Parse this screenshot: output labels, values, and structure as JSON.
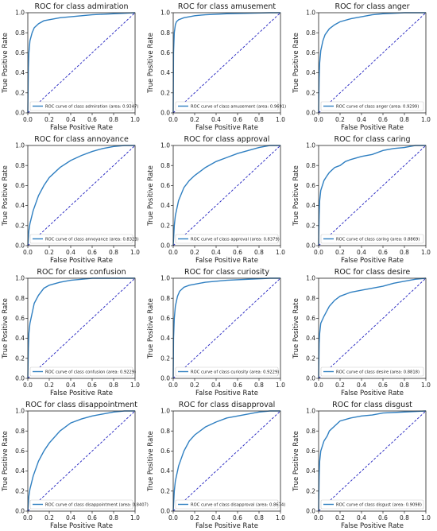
{
  "chart_data": [
    {
      "type": "line",
      "title": "ROC for class admiration",
      "xlabel": "False Positive Rate",
      "ylabel": "True Positive Rate",
      "xlim": [
        0,
        1
      ],
      "ylim": [
        0,
        1
      ],
      "xticks": [
        "0.0",
        "0.2",
        "0.4",
        "0.6",
        "0.8",
        "1.0"
      ],
      "yticks": [
        "0.0",
        "0.2",
        "0.4",
        "0.6",
        "0.8",
        "1.0"
      ],
      "legend": "lower right",
      "series": [
        {
          "name": "ROC curve of class admiration (area: 0.9347)",
          "color": "#2f7fc1",
          "x": [
            0,
            0.005,
            0.01,
            0.02,
            0.04,
            0.06,
            0.1,
            0.15,
            0.2,
            0.3,
            0.4,
            0.5,
            0.6,
            0.7,
            0.8,
            0.9,
            1.0
          ],
          "y": [
            0,
            0.45,
            0.6,
            0.72,
            0.8,
            0.85,
            0.89,
            0.92,
            0.93,
            0.95,
            0.96,
            0.97,
            0.98,
            0.985,
            0.99,
            0.995,
            1.0
          ]
        },
        {
          "name": "",
          "color": "#1f1fbf",
          "dashed": true,
          "x": [
            0,
            1
          ],
          "y": [
            0,
            1
          ]
        }
      ]
    },
    {
      "type": "line",
      "title": "ROC for class amusement",
      "xlabel": "False Positive Rate",
      "ylabel": "True Positive Rate",
      "xlim": [
        0,
        1
      ],
      "ylim": [
        0,
        1
      ],
      "xticks": [
        "0.0",
        "0.2",
        "0.4",
        "0.6",
        "0.8",
        "1.0"
      ],
      "yticks": [
        "0.0",
        "0.2",
        "0.4",
        "0.6",
        "0.8",
        "1.0"
      ],
      "legend": "lower right",
      "series": [
        {
          "name": "ROC curve of class amusement (area: 0.9691)",
          "color": "#2f7fc1",
          "x": [
            0,
            0.003,
            0.01,
            0.02,
            0.03,
            0.05,
            0.1,
            0.2,
            0.3,
            0.5,
            0.7,
            0.9,
            1.0
          ],
          "y": [
            0,
            0.6,
            0.8,
            0.88,
            0.91,
            0.93,
            0.95,
            0.97,
            0.98,
            0.99,
            0.995,
            1.0,
            1.0
          ]
        },
        {
          "name": "",
          "color": "#1f1fbf",
          "dashed": true,
          "x": [
            0,
            1
          ],
          "y": [
            0,
            1
          ]
        }
      ]
    },
    {
      "type": "line",
      "title": "ROC for class anger",
      "xlabel": "False Positive Rate",
      "ylabel": "True Positive Rate",
      "xlim": [
        0,
        1
      ],
      "ylim": [
        0,
        1
      ],
      "xticks": [
        "0.0",
        "0.2",
        "0.4",
        "0.6",
        "0.8",
        "1.0"
      ],
      "yticks": [
        "0.0",
        "0.2",
        "0.4",
        "0.6",
        "0.8",
        "1.0"
      ],
      "legend": "lower right",
      "series": [
        {
          "name": "ROC curve of class anger (area: 0.9299)",
          "color": "#2f7fc1",
          "x": [
            0,
            0.005,
            0.01,
            0.02,
            0.04,
            0.06,
            0.1,
            0.15,
            0.2,
            0.3,
            0.4,
            0.5,
            0.6,
            0.8,
            1.0
          ],
          "y": [
            0,
            0.35,
            0.5,
            0.62,
            0.72,
            0.78,
            0.84,
            0.88,
            0.91,
            0.94,
            0.96,
            0.98,
            0.99,
            1.0,
            1.0
          ]
        },
        {
          "name": "",
          "color": "#1f1fbf",
          "dashed": true,
          "x": [
            0,
            1
          ],
          "y": [
            0,
            1
          ]
        }
      ]
    },
    {
      "type": "line",
      "title": "ROC for class annoyance",
      "xlabel": "False Positive Rate",
      "ylabel": "True Positive Rate",
      "xlim": [
        0,
        1
      ],
      "ylim": [
        0,
        1
      ],
      "xticks": [
        "0.0",
        "0.2",
        "0.4",
        "0.6",
        "0.8",
        "1.0"
      ],
      "yticks": [
        "0.0",
        "0.2",
        "0.4",
        "0.6",
        "0.8",
        "1.0"
      ],
      "legend": "lower right",
      "series": [
        {
          "name": "ROC curve of class annoyance (area: 0.8323)",
          "color": "#2f7fc1",
          "x": [
            0,
            0.01,
            0.02,
            0.05,
            0.1,
            0.15,
            0.2,
            0.3,
            0.4,
            0.5,
            0.6,
            0.7,
            0.8,
            0.9,
            1.0
          ],
          "y": [
            0,
            0.15,
            0.22,
            0.35,
            0.5,
            0.6,
            0.68,
            0.78,
            0.85,
            0.9,
            0.94,
            0.97,
            0.99,
            1.0,
            1.0
          ]
        },
        {
          "name": "",
          "color": "#1f1fbf",
          "dashed": true,
          "x": [
            0,
            1
          ],
          "y": [
            0,
            1
          ]
        }
      ]
    },
    {
      "type": "line",
      "title": "ROC for class approval",
      "xlabel": "False Positive Rate",
      "ylabel": "True Positive Rate",
      "xlim": [
        0,
        1
      ],
      "ylim": [
        0,
        1
      ],
      "xticks": [
        "0.0",
        "0.2",
        "0.4",
        "0.6",
        "0.8",
        "1.0"
      ],
      "yticks": [
        "0.0",
        "0.2",
        "0.4",
        "0.6",
        "0.8",
        "1.0"
      ],
      "legend": "lower right",
      "series": [
        {
          "name": "ROC curve of class approval (area: 0.8379)",
          "color": "#2f7fc1",
          "x": [
            0,
            0.01,
            0.02,
            0.05,
            0.1,
            0.15,
            0.2,
            0.3,
            0.4,
            0.5,
            0.6,
            0.7,
            0.8,
            0.9,
            1.0
          ],
          "y": [
            0,
            0.2,
            0.3,
            0.45,
            0.58,
            0.65,
            0.7,
            0.78,
            0.84,
            0.88,
            0.92,
            0.95,
            0.98,
            1.0,
            1.0
          ]
        },
        {
          "name": "",
          "color": "#1f1fbf",
          "dashed": true,
          "x": [
            0,
            1
          ],
          "y": [
            0,
            1
          ]
        }
      ]
    },
    {
      "type": "line",
      "title": "ROC for class caring",
      "xlabel": "False Positive Rate",
      "ylabel": "True Positive Rate",
      "xlim": [
        0,
        1
      ],
      "ylim": [
        0,
        1
      ],
      "xticks": [
        "0.0",
        "0.2",
        "0.4",
        "0.6",
        "0.8",
        "1.0"
      ],
      "yticks": [
        "0.0",
        "0.2",
        "0.4",
        "0.6",
        "0.8",
        "1.0"
      ],
      "legend": "lower right",
      "series": [
        {
          "name": "ROC curve of class caring (area: 0.8869)",
          "color": "#2f7fc1",
          "x": [
            0,
            0.005,
            0.01,
            0.02,
            0.05,
            0.08,
            0.1,
            0.15,
            0.2,
            0.25,
            0.3,
            0.4,
            0.5,
            0.6,
            0.7,
            0.8,
            0.9,
            1.0
          ],
          "y": [
            0,
            0.3,
            0.45,
            0.55,
            0.65,
            0.7,
            0.73,
            0.78,
            0.8,
            0.84,
            0.86,
            0.89,
            0.91,
            0.95,
            0.97,
            0.98,
            1.0,
            1.0
          ]
        },
        {
          "name": "",
          "color": "#1f1fbf",
          "dashed": true,
          "x": [
            0,
            1
          ],
          "y": [
            0,
            1
          ]
        }
      ]
    },
    {
      "type": "line",
      "title": "ROC for class confusion",
      "xlabel": "False Positive Rate",
      "ylabel": "True Positive Rate",
      "xlim": [
        0,
        1
      ],
      "ylim": [
        0,
        1
      ],
      "xticks": [
        "0.0",
        "0.2",
        "0.4",
        "0.6",
        "0.8",
        "1.0"
      ],
      "yticks": [
        "0.0",
        "0.2",
        "0.4",
        "0.6",
        "0.8",
        "1.0"
      ],
      "legend": "lower right",
      "series": [
        {
          "name": "ROC curve of class confusion (area: 0.9229)",
          "color": "#2f7fc1",
          "x": [
            0,
            0.005,
            0.01,
            0.02,
            0.04,
            0.06,
            0.1,
            0.15,
            0.2,
            0.3,
            0.4,
            0.5,
            0.6,
            0.8,
            1.0
          ],
          "y": [
            0,
            0.3,
            0.45,
            0.55,
            0.65,
            0.75,
            0.83,
            0.9,
            0.93,
            0.96,
            0.98,
            0.99,
            1.0,
            1.0,
            1.0
          ]
        },
        {
          "name": "",
          "color": "#1f1fbf",
          "dashed": true,
          "x": [
            0,
            1
          ],
          "y": [
            0,
            1
          ]
        }
      ]
    },
    {
      "type": "line",
      "title": "ROC for class curiosity",
      "xlabel": "False Positive Rate",
      "ylabel": "True Positive Rate",
      "xlim": [
        0,
        1
      ],
      "ylim": [
        0,
        1
      ],
      "xticks": [
        "0.0",
        "0.2",
        "0.4",
        "0.6",
        "0.8",
        "1.0"
      ],
      "yticks": [
        "0.0",
        "0.2",
        "0.4",
        "0.6",
        "0.8",
        "1.0"
      ],
      "legend": "lower right",
      "series": [
        {
          "name": "ROC curve of class curiosity (area: 0.9229)",
          "color": "#2f7fc1",
          "x": [
            0,
            0.003,
            0.01,
            0.02,
            0.04,
            0.06,
            0.1,
            0.15,
            0.2,
            0.3,
            0.4,
            0.5,
            0.7,
            0.9,
            1.0
          ],
          "y": [
            0,
            0.4,
            0.6,
            0.72,
            0.82,
            0.87,
            0.91,
            0.93,
            0.94,
            0.96,
            0.97,
            0.98,
            0.99,
            1.0,
            1.0
          ]
        },
        {
          "name": "",
          "color": "#1f1fbf",
          "dashed": true,
          "x": [
            0,
            1
          ],
          "y": [
            0,
            1
          ]
        }
      ]
    },
    {
      "type": "line",
      "title": "ROC for class desire",
      "xlabel": "False Positive Rate",
      "ylabel": "True Positive Rate",
      "xlim": [
        0,
        1
      ],
      "ylim": [
        0,
        1
      ],
      "xticks": [
        "0.0",
        "0.2",
        "0.4",
        "0.6",
        "0.8",
        "1.0"
      ],
      "yticks": [
        "0.0",
        "0.2",
        "0.4",
        "0.6",
        "0.8",
        "1.0"
      ],
      "legend": "lower right",
      "series": [
        {
          "name": "ROC curve of class desire (area: 0.8818)",
          "color": "#2f7fc1",
          "x": [
            0,
            0.005,
            0.01,
            0.02,
            0.05,
            0.08,
            0.1,
            0.15,
            0.2,
            0.3,
            0.4,
            0.5,
            0.6,
            0.7,
            0.8,
            0.9,
            1.0
          ],
          "y": [
            0,
            0.35,
            0.45,
            0.55,
            0.62,
            0.68,
            0.72,
            0.78,
            0.82,
            0.86,
            0.88,
            0.9,
            0.92,
            0.95,
            0.97,
            0.99,
            1.0
          ]
        },
        {
          "name": "",
          "color": "#1f1fbf",
          "dashed": true,
          "x": [
            0,
            1
          ],
          "y": [
            0,
            1
          ]
        }
      ]
    },
    {
      "type": "line",
      "title": "ROC for class disappointment",
      "xlabel": "False Positive Rate",
      "ylabel": "True Positive Rate",
      "xlim": [
        0,
        1
      ],
      "ylim": [
        0,
        1
      ],
      "xticks": [
        "0.0",
        "0.2",
        "0.4",
        "0.6",
        "0.8",
        "1.0"
      ],
      "yticks": [
        "0.0",
        "0.2",
        "0.4",
        "0.6",
        "0.8",
        "1.0"
      ],
      "legend": "lower right",
      "series": [
        {
          "name": "ROC curve of class disappointment (area: 0.8407)",
          "color": "#2f7fc1",
          "x": [
            0,
            0.01,
            0.02,
            0.05,
            0.1,
            0.15,
            0.2,
            0.3,
            0.4,
            0.5,
            0.6,
            0.7,
            0.8,
            0.9,
            1.0
          ],
          "y": [
            0,
            0.15,
            0.22,
            0.35,
            0.5,
            0.6,
            0.68,
            0.8,
            0.88,
            0.92,
            0.95,
            0.97,
            0.99,
            1.0,
            1.0
          ]
        },
        {
          "name": "",
          "color": "#1f1fbf",
          "dashed": true,
          "x": [
            0,
            1
          ],
          "y": [
            0,
            1
          ]
        }
      ]
    },
    {
      "type": "line",
      "title": "ROC for class disapproval",
      "xlabel": "False Positive Rate",
      "ylabel": "True Positive Rate",
      "xlim": [
        0,
        1
      ],
      "ylim": [
        0,
        1
      ],
      "xticks": [
        "0.0",
        "0.2",
        "0.4",
        "0.6",
        "0.8",
        "1.0"
      ],
      "yticks": [
        "0.0",
        "0.2",
        "0.4",
        "0.6",
        "0.8",
        "1.0"
      ],
      "legend": "lower right",
      "series": [
        {
          "name": "ROC curve of class disapproval (area: 0.8674)",
          "color": "#2f7fc1",
          "x": [
            0,
            0.01,
            0.02,
            0.05,
            0.1,
            0.15,
            0.2,
            0.3,
            0.4,
            0.5,
            0.6,
            0.7,
            0.8,
            0.9,
            1.0
          ],
          "y": [
            0,
            0.2,
            0.3,
            0.45,
            0.6,
            0.7,
            0.76,
            0.84,
            0.89,
            0.93,
            0.95,
            0.97,
            0.99,
            1.0,
            1.0
          ]
        },
        {
          "name": "",
          "color": "#1f1fbf",
          "dashed": true,
          "x": [
            0,
            1
          ],
          "y": [
            0,
            1
          ]
        }
      ]
    },
    {
      "type": "line",
      "title": "ROC for class disgust",
      "xlabel": "False Positive Rate",
      "ylabel": "True Positive Rate",
      "xlim": [
        0,
        1
      ],
      "ylim": [
        0,
        1
      ],
      "xticks": [
        "0.0",
        "0.2",
        "0.4",
        "0.6",
        "0.8",
        "1.0"
      ],
      "yticks": [
        "0.0",
        "0.2",
        "0.4",
        "0.6",
        "0.8",
        "1.0"
      ],
      "legend": "lower right",
      "series": [
        {
          "name": "ROC curve of class disgust (area: 0.9098)",
          "color": "#2f7fc1",
          "x": [
            0,
            0.005,
            0.01,
            0.02,
            0.05,
            0.08,
            0.1,
            0.15,
            0.2,
            0.3,
            0.4,
            0.5,
            0.6,
            0.8,
            1.0
          ],
          "y": [
            0,
            0.35,
            0.5,
            0.6,
            0.7,
            0.75,
            0.8,
            0.85,
            0.9,
            0.93,
            0.95,
            0.96,
            0.98,
            0.99,
            1.0
          ]
        },
        {
          "name": "",
          "color": "#1f1fbf",
          "dashed": true,
          "x": [
            0,
            1
          ],
          "y": [
            0,
            1
          ]
        }
      ]
    }
  ]
}
